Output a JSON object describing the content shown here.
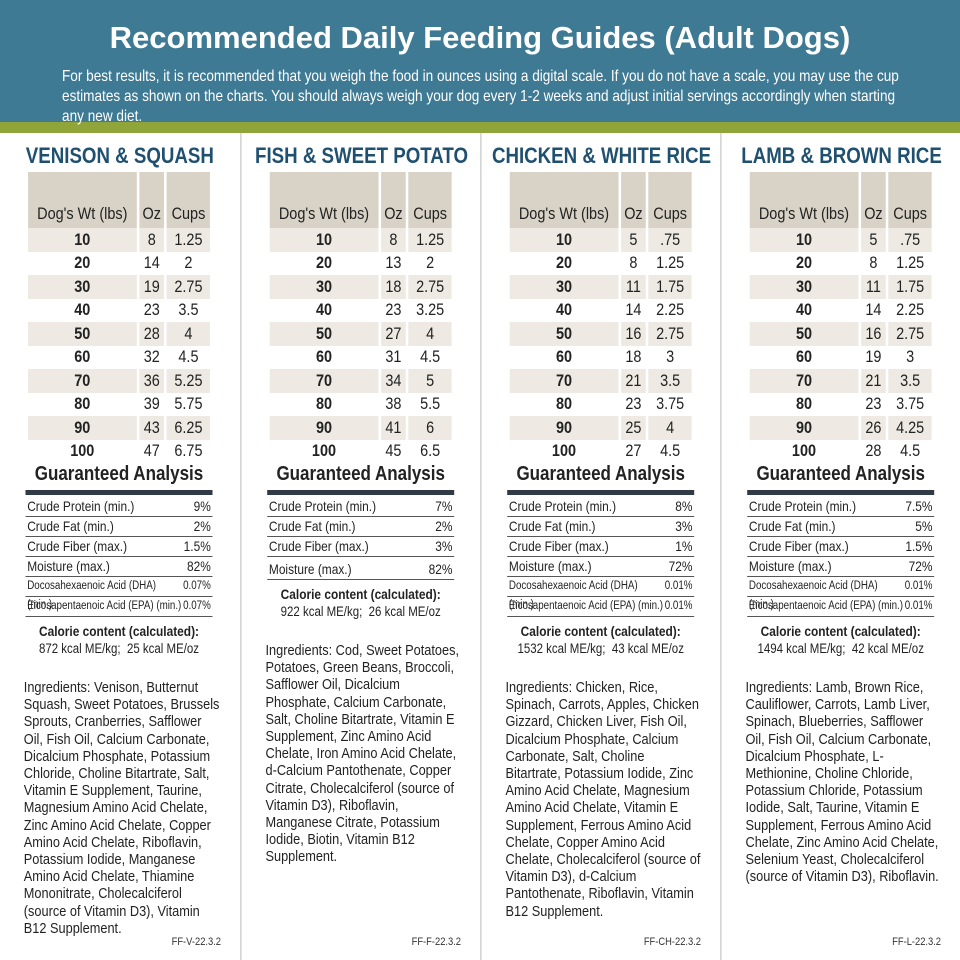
{
  "header": {
    "title": "Recommended Daily Feeding Guides (Adult Dogs)",
    "intro": "For best results, it is recommended that you weigh the food in ounces using a digital scale. If you do not have a scale, you may use the cup estimates as shown on the charts. You should always weigh your dog every 1-2 weeks and adjust initial servings accordingly when starting any new diet."
  },
  "columns": [
    {
      "name": "VENISON & SQUASH",
      "table": {
        "headers": [
          "Dog's Wt (lbs)",
          "Oz",
          "Cups"
        ],
        "rows": [
          [
            "10",
            "8",
            "1.25"
          ],
          [
            "20",
            "14",
            "2"
          ],
          [
            "30",
            "19",
            "2.75"
          ],
          [
            "40",
            "23",
            "3.5"
          ],
          [
            "50",
            "28",
            "4"
          ],
          [
            "60",
            "32",
            "4.5"
          ],
          [
            "70",
            "36",
            "5.25"
          ],
          [
            "80",
            "39",
            "5.75"
          ],
          [
            "90",
            "43",
            "6.25"
          ],
          [
            "100",
            "47",
            "6.75"
          ]
        ]
      },
      "analysis_title": "Guaranteed Analysis",
      "analysis": [
        [
          "Crude Protein (min.)",
          "9%"
        ],
        [
          "Crude Fat (min.)",
          "2%"
        ],
        [
          "Crude Fiber (max.)",
          "1.5%"
        ],
        [
          "Moisture (max.)",
          "82%"
        ],
        [
          "Docosahexaenoic Acid (DHA) (min.)",
          "0.07%"
        ],
        [
          "Eicosapentaenoic Acid (EPA) (min.)",
          "0.07%"
        ]
      ],
      "calorie_title": "Calorie content (calculated):",
      "calorie": "872 kcal ME/kg;  25 kcal ME/oz",
      "ingredients": "Ingredients: Venison, Butternut Squash, Sweet Potatoes, Brussels Sprouts, Cranberries, Safflower Oil, Fish Oil, Calcium Carbonate, Dicalcium Phosphate, Potassium Chloride, Choline Bitartrate, Salt, Vitamin E Supplement, Taurine, Magnesium Amino Acid Chelate, Zinc Amino Acid Chelate, Copper Amino Acid Chelate, Riboflavin, Potassium Iodide, Manganese Amino Acid Chelate, Thiamine Mononitrate, Cholecalciferol (source of Vitamin D3), Vitamin B12 Supplement.",
      "code": "FF-V-22.3.2"
    },
    {
      "name": "FISH & SWEET POTATO",
      "table": {
        "headers": [
          "Dog's Wt (lbs)",
          "Oz",
          "Cups"
        ],
        "rows": [
          [
            "10",
            "8",
            "1.25"
          ],
          [
            "20",
            "13",
            "2"
          ],
          [
            "30",
            "18",
            "2.75"
          ],
          [
            "40",
            "23",
            "3.25"
          ],
          [
            "50",
            "27",
            "4"
          ],
          [
            "60",
            "31",
            "4.5"
          ],
          [
            "70",
            "34",
            "5"
          ],
          [
            "80",
            "38",
            "5.5"
          ],
          [
            "90",
            "41",
            "6"
          ],
          [
            "100",
            "45",
            "6.5"
          ]
        ]
      },
      "analysis_title": "Guaranteed Analysis",
      "analysis": [
        [
          "Crude Protein (min.)",
          "7%"
        ],
        [
          "Crude Fat (min.)",
          "2%"
        ],
        [
          "Crude Fiber (max.)",
          "3%"
        ],
        [
          "Moisture (max.)",
          "82%"
        ]
      ],
      "calorie_title": "Calorie content (calculated):",
      "calorie": "922 kcal ME/kg;  26 kcal ME/oz",
      "ingredients": "Ingredients: Cod, Sweet Potatoes, Potatoes, Green Beans, Broccoli, Safflower Oil, Dicalcium Phosphate, Calcium Carbonate, Salt, Choline Bitartrate, Vitamin E Supplement, Zinc Amino Acid Chelate, Iron Amino Acid Chelate, d-Calcium Pantothenate, Copper Citrate, Cholecalciferol (source of Vitamin D3), Riboflavin, Manganese Citrate, Potassium Iodide, Biotin, Vitamin B12 Supplement.",
      "code": "FF-F-22.3.2"
    },
    {
      "name": "CHICKEN & WHITE RICE",
      "table": {
        "headers": [
          "Dog's Wt (lbs)",
          "Oz",
          "Cups"
        ],
        "rows": [
          [
            "10",
            "5",
            ".75"
          ],
          [
            "20",
            "8",
            "1.25"
          ],
          [
            "30",
            "11",
            "1.75"
          ],
          [
            "40",
            "14",
            "2.25"
          ],
          [
            "50",
            "16",
            "2.75"
          ],
          [
            "60",
            "18",
            "3"
          ],
          [
            "70",
            "21",
            "3.5"
          ],
          [
            "80",
            "23",
            "3.75"
          ],
          [
            "90",
            "25",
            "4"
          ],
          [
            "100",
            "27",
            "4.5"
          ]
        ]
      },
      "analysis_title": "Guaranteed Analysis",
      "analysis": [
        [
          "Crude Protein (min.)",
          "8%"
        ],
        [
          "Crude Fat (min.)",
          "3%"
        ],
        [
          "Crude Fiber (max.)",
          "1%"
        ],
        [
          "Moisture (max.)",
          "72%"
        ],
        [
          "Docosahexaenoic Acid (DHA) (min.)",
          "0.01%"
        ],
        [
          "Eicosapentaenoic Acid (EPA) (min.)",
          "0.01%"
        ]
      ],
      "calorie_title": "Calorie content (calculated):",
      "calorie": "1532 kcal ME/kg;  43 kcal ME/oz",
      "ingredients": "Ingredients: Chicken, Rice, Spinach, Carrots, Apples, Chicken Gizzard, Chicken Liver, Fish Oil, Dicalcium Phosphate, Calcium Carbonate, Salt, Choline Bitartrate, Potassium Iodide, Zinc Amino Acid Chelate, Magnesium Amino Acid Chelate, Vitamin E Supplement, Ferrous Amino Acid Chelate, Copper Amino Acid Chelate, Cholecalciferol (source of Vitamin D3), d-Calcium Pantothenate, Riboflavin, Vitamin B12 Supplement.",
      "code": "FF-CH-22.3.2"
    },
    {
      "name": "LAMB & BROWN RICE",
      "table": {
        "headers": [
          "Dog's Wt (lbs)",
          "Oz",
          "Cups"
        ],
        "rows": [
          [
            "10",
            "5",
            ".75"
          ],
          [
            "20",
            "8",
            "1.25"
          ],
          [
            "30",
            "11",
            "1.75"
          ],
          [
            "40",
            "14",
            "2.25"
          ],
          [
            "50",
            "16",
            "2.75"
          ],
          [
            "60",
            "19",
            "3"
          ],
          [
            "70",
            "21",
            "3.5"
          ],
          [
            "80",
            "23",
            "3.75"
          ],
          [
            "90",
            "26",
            "4.25"
          ],
          [
            "100",
            "28",
            "4.5"
          ]
        ]
      },
      "analysis_title": "Guaranteed Analysis",
      "analysis": [
        [
          "Crude Protein (min.)",
          "7.5%"
        ],
        [
          "Crude Fat (min.)",
          "5%"
        ],
        [
          "Crude Fiber (max.)",
          "1.5%"
        ],
        [
          "Moisture (max.)",
          "72%"
        ],
        [
          "Docosahexaenoic Acid (DHA) (min.)",
          "0.01%"
        ],
        [
          "Eicosapentaenoic Acid (EPA) (min.)",
          "0.01%"
        ]
      ],
      "calorie_title": "Calorie content (calculated):",
      "calorie": "1494 kcal ME/kg;  42 kcal ME/oz",
      "ingredients": "Ingredients: Lamb, Brown Rice, Cauliflower, Carrots, Lamb Liver, Spinach, Blueberries, Safflower Oil, Fish Oil, Calcium Carbonate, Dicalcium Phosphate, L-Methionine, Choline Chloride, Potassium Chloride, Potassium Iodide, Salt, Taurine, Vitamin E Supplement, Ferrous Amino Acid Chelate, Zinc Amino Acid Chelate, Selenium Yeast, Cholecalciferol (source of Vitamin D3), Riboflavin.",
      "code": "FF-L-22.3.2"
    }
  ]
}
